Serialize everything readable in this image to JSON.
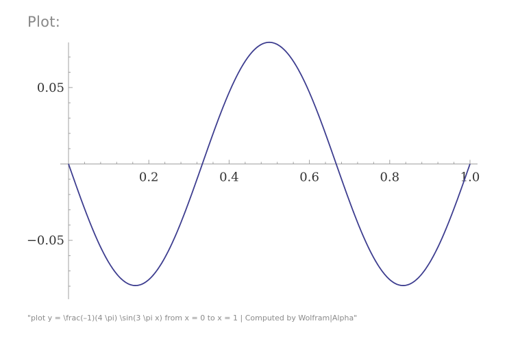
{
  "panel": {
    "heading": "Plot:",
    "caption": "\"plot y = \\frac(–1)(4 \\pi) \\sin(3 \\pi x) from x = 0 to x = 1 | Computed by Wolfram|Alpha\""
  },
  "chart_data": {
    "type": "line",
    "function": "y = -(1/(4*pi)) * sin(3*pi*x)",
    "xlim": [
      0,
      1
    ],
    "ylim": [
      -0.0885,
      0.0795
    ],
    "x": [
      0,
      0.0833,
      0.1667,
      0.25,
      0.3333,
      0.4167,
      0.5,
      0.5833,
      0.6667,
      0.75,
      0.8333,
      0.9167,
      1.0
    ],
    "y": [
      0,
      -0.0563,
      -0.0796,
      -0.0563,
      0,
      0.0563,
      0.0796,
      0.0563,
      0,
      -0.0563,
      -0.0796,
      -0.0563,
      0
    ],
    "x_ticks": [
      {
        "value": 0.2,
        "label": "0.2"
      },
      {
        "value": 0.4,
        "label": "0.4"
      },
      {
        "value": 0.6,
        "label": "0.6"
      },
      {
        "value": 0.8,
        "label": "0.8"
      },
      {
        "value": 1.0,
        "label": "1.0"
      }
    ],
    "y_ticks": [
      {
        "value": 0.05,
        "label": "0.05"
      },
      {
        "value": -0.05,
        "label": "−0.05"
      }
    ],
    "grid": false,
    "legend": "none",
    "line_color": "#3d3d8f",
    "axis_color": "#a0a0a0"
  }
}
